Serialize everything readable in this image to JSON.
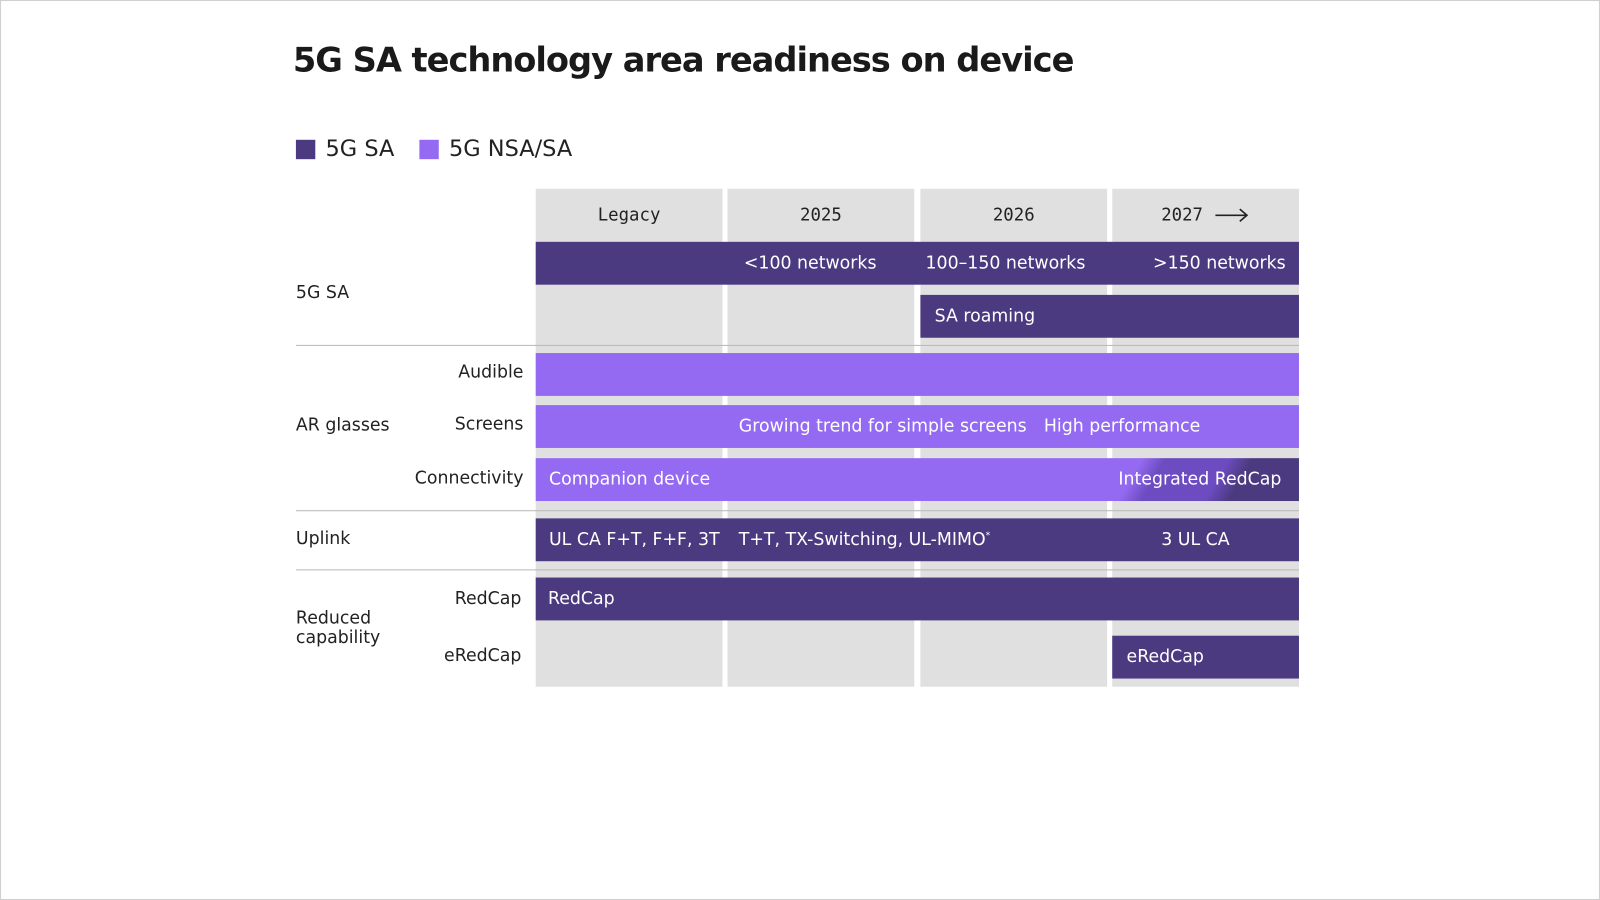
{
  "title": "5G SA technology area readiness on device",
  "legend": [
    {
      "label": "5G SA",
      "color": "#4c3a80"
    },
    {
      "label": "5G NSA/SA",
      "color": "#956af2"
    }
  ],
  "columns": [
    "Legacy",
    "2025",
    "2026",
    "2027"
  ],
  "arrow_icon": "arrow-right",
  "rows": {
    "sa": {
      "label": "5G SA",
      "networks": [
        "<100 networks",
        "100–150 networks",
        ">150 networks"
      ],
      "roaming": "SA roaming"
    },
    "ar": {
      "label": "AR glasses",
      "audible": "Audible",
      "screens": "Screens",
      "screens_texts": [
        "Growing trend for simple screens",
        "High performance"
      ],
      "connectivity": "Connectivity",
      "connectivity_texts": [
        "Companion device",
        "Integrated RedCap"
      ]
    },
    "uplink": {
      "label": "Uplink",
      "texts": [
        "UL CA F+T, F+F, 3T",
        "T+T, TX-Switching, UL-MIMO",
        "*",
        "3 UL CA"
      ]
    },
    "redcap": {
      "label_line1": "Reduced",
      "label_line2": "capability",
      "redcap": "RedCap",
      "redcap_bar": "RedCap",
      "eredcap": "eRedCap",
      "eredcap_bar": "eRedCap"
    }
  }
}
